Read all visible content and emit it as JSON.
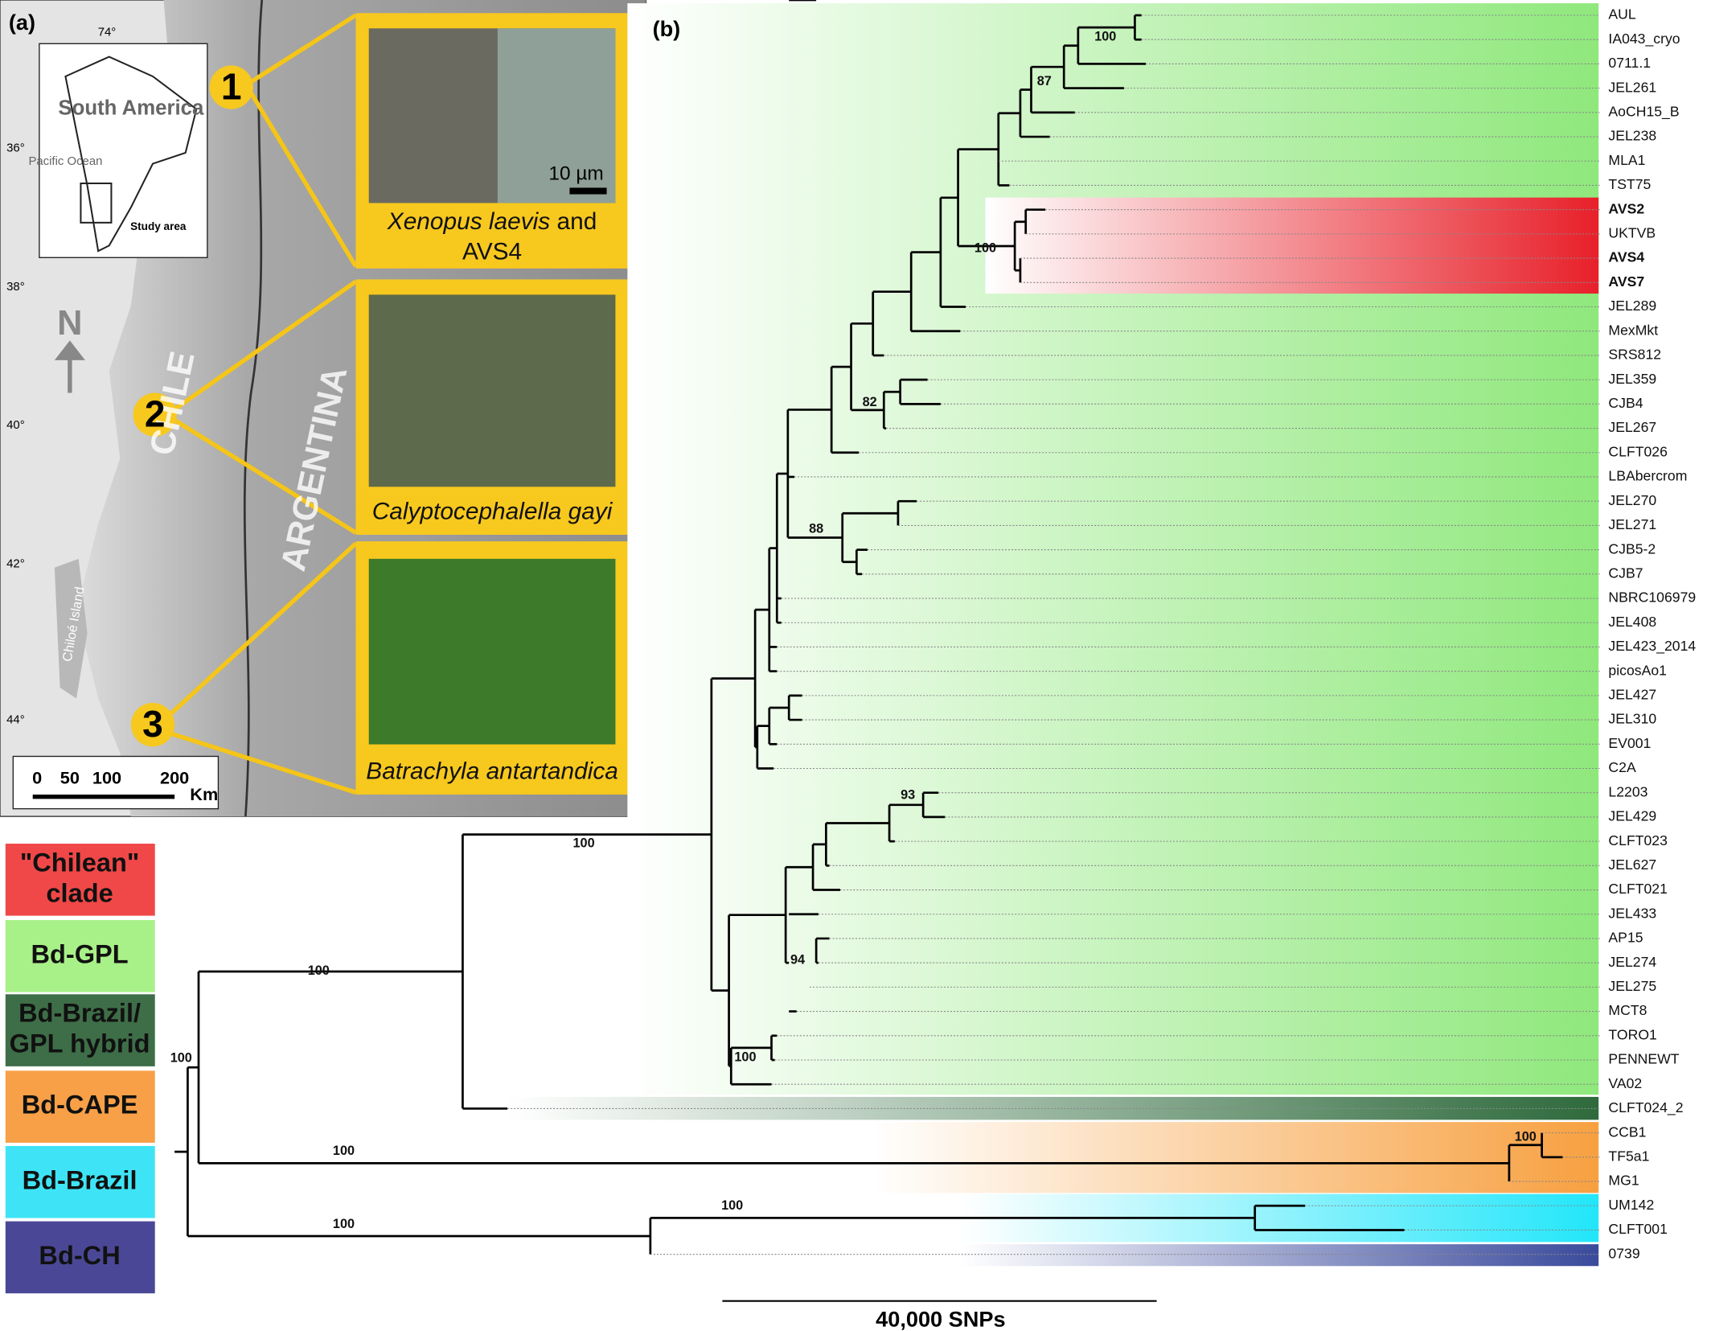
{
  "panel_a": {
    "label": "(a)",
    "longitude": "74°",
    "latitudes": [
      "36°",
      "38°",
      "40°",
      "42°",
      "44°"
    ],
    "inset": {
      "continent": "South America",
      "ocean": "Pacific Ocean",
      "area": "Study area"
    },
    "north": "N",
    "countries": [
      "CHILE",
      "ARGENTINA"
    ],
    "island": "Chiloé Island",
    "scale": {
      "ticks": [
        "0",
        "50",
        "100",
        "200"
      ],
      "unit": "Km"
    },
    "sites": [
      {
        "number": "1",
        "caption": [
          "Xenopus laevis",
          " and",
          "AVS4"
        ],
        "scale_bar": "10 µm"
      },
      {
        "number": "2",
        "caption": [
          "Calyptocephalella gayi"
        ]
      },
      {
        "number": "3",
        "caption": [
          "Batrachyla antartandica"
        ]
      }
    ]
  },
  "panel_b": {
    "label": "(b)",
    "leaves": [
      {
        "label": "AUL"
      },
      {
        "label": "IA043_cryo"
      },
      {
        "label": "0711.1"
      },
      {
        "label": "JEL261"
      },
      {
        "label": "AoCH15_B"
      },
      {
        "label": "JEL238"
      },
      {
        "label": "MLA1"
      },
      {
        "label": "TST75"
      },
      {
        "label": "AVS2",
        "highlight": true
      },
      {
        "label": "UKTVB"
      },
      {
        "label": "AVS4",
        "highlight": true
      },
      {
        "label": "AVS7",
        "highlight": true
      },
      {
        "label": "JEL289"
      },
      {
        "label": "MexMkt"
      },
      {
        "label": "SRS812"
      },
      {
        "label": "JEL359"
      },
      {
        "label": "CJB4"
      },
      {
        "label": "JEL267"
      },
      {
        "label": "CLFT026"
      },
      {
        "label": "LBAbercrom"
      },
      {
        "label": "JEL270"
      },
      {
        "label": "JEL271"
      },
      {
        "label": "CJB5-2"
      },
      {
        "label": "CJB7"
      },
      {
        "label": "NBRC106979"
      },
      {
        "label": "JEL408"
      },
      {
        "label": "JEL423_2014"
      },
      {
        "label": "picosAo1"
      },
      {
        "label": "JEL427"
      },
      {
        "label": "JEL310"
      },
      {
        "label": "EV001"
      },
      {
        "label": "C2A"
      },
      {
        "label": "L2203"
      },
      {
        "label": "JEL429"
      },
      {
        "label": "CLFT023"
      },
      {
        "label": "JEL627"
      },
      {
        "label": "CLFT021"
      },
      {
        "label": "JEL433"
      },
      {
        "label": "AP15"
      },
      {
        "label": "JEL274"
      },
      {
        "label": "JEL275"
      },
      {
        "label": "MCT8"
      },
      {
        "label": "TORO1"
      },
      {
        "label": "PENNEWT"
      },
      {
        "label": "VA02"
      },
      {
        "label": "CLFT024_2"
      },
      {
        "label": "CCB1"
      },
      {
        "label": "TF5a1"
      },
      {
        "label": "MG1"
      },
      {
        "label": "UM142"
      },
      {
        "label": "CLFT001"
      },
      {
        "label": "0739"
      }
    ],
    "support": [
      "100",
      "87",
      "100",
      "82",
      "88",
      "93",
      "94",
      "100",
      "100",
      "100",
      "100",
      "100",
      "100",
      "100",
      "100"
    ],
    "scale_label": "40,000 SNPs",
    "clades": [
      {
        "lines": [
          "\"Chilean\"",
          "clade"
        ],
        "color": "#f04848",
        "text_color": "#111"
      },
      {
        "lines": [
          "Bd-GPL"
        ],
        "color": "#a8f088",
        "text_color": "#111"
      },
      {
        "lines": [
          "Bd-Brazil/",
          "GPL hybrid"
        ],
        "color": "#3e6e48",
        "text_color": "#111"
      },
      {
        "lines": [
          "Bd-CAPE"
        ],
        "color": "#f7a048",
        "text_color": "#111"
      },
      {
        "lines": [
          "Bd-Brazil"
        ],
        "color": "#3ee4f6",
        "text_color": "#111"
      },
      {
        "lines": [
          "Bd-CH"
        ],
        "color": "#4a4896",
        "text_color": "#fff"
      }
    ],
    "highlight_color": "#cc1a1a"
  }
}
